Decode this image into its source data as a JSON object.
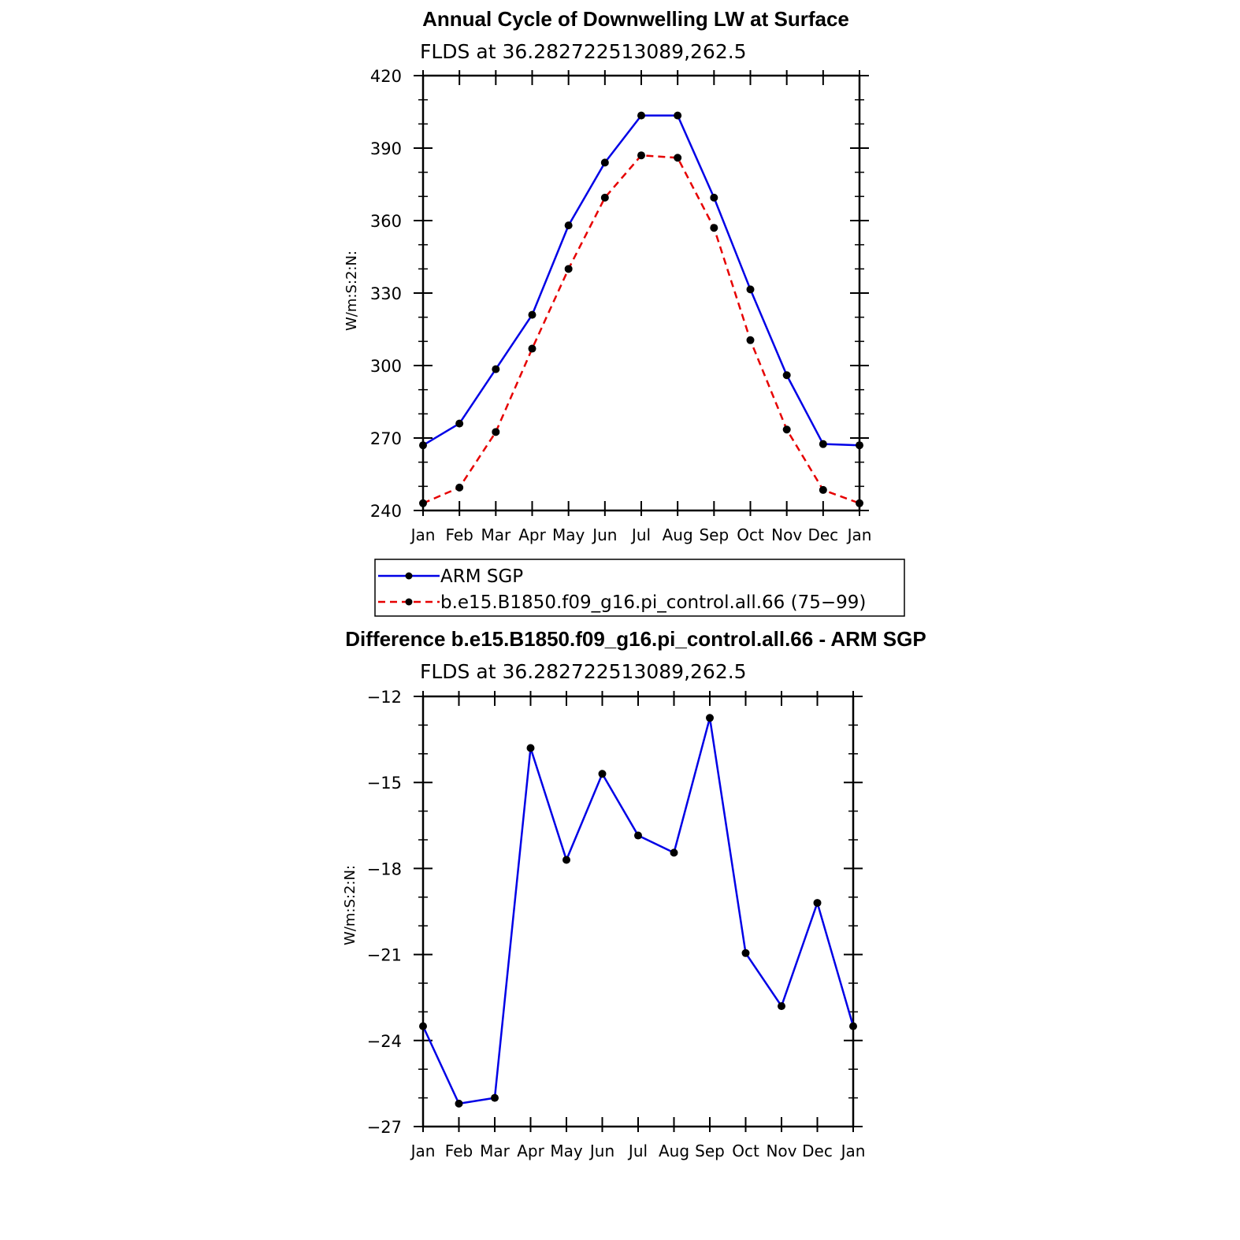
{
  "chart_data": [
    {
      "type": "line",
      "title": "Annual Cycle of Downwelling LW at Surface",
      "subtitle": "FLDS at 36.282722513089,262.5",
      "ylabel": "W/m:S:2:N:",
      "xlabel": "",
      "categories": [
        "Jan",
        "Feb",
        "Mar",
        "Apr",
        "May",
        "Jun",
        "Jul",
        "Aug",
        "Sep",
        "Oct",
        "Nov",
        "Dec",
        "Jan"
      ],
      "ylim": [
        240,
        420
      ],
      "yticks": [
        240,
        270,
        300,
        330,
        360,
        390,
        420
      ],
      "series": [
        {
          "name": "ARM SGP",
          "color": "#0000e6",
          "dash": "solid",
          "values": [
            267,
            276,
            298.5,
            321,
            358,
            384,
            403.5,
            403.5,
            369.5,
            331.5,
            296,
            267.5,
            267
          ]
        },
        {
          "name": "b.e15.B1850.f09_g16.pi_control.all.66 (75−99)",
          "color": "#e60000",
          "dash": "dashed",
          "values": [
            243,
            249.5,
            272.5,
            307,
            340,
            369.5,
            387,
            386,
            357,
            310.5,
            273.5,
            248.5,
            243
          ]
        }
      ],
      "legend": "below"
    },
    {
      "type": "line",
      "title": "Difference b.e15.B1850.f09_g16.pi_control.all.66 - ARM SGP",
      "subtitle": "FLDS at 36.282722513089,262.5",
      "ylabel": "W/m:S:2:N:",
      "xlabel": "",
      "categories": [
        "Jan",
        "Feb",
        "Mar",
        "Apr",
        "May",
        "Jun",
        "Jul",
        "Aug",
        "Sep",
        "Oct",
        "Nov",
        "Dec",
        "Jan"
      ],
      "ylim": [
        -27,
        -12
      ],
      "yticks": [
        -27,
        -24,
        -21,
        -18,
        -15,
        -12
      ],
      "series": [
        {
          "color": "#0000e6",
          "dash": "solid",
          "values": [
            -23.5,
            -26.2,
            -26.0,
            -13.8,
            -17.7,
            -14.7,
            -16.85,
            -17.45,
            -12.75,
            -20.95,
            -22.8,
            -19.2,
            -23.5
          ]
        }
      ]
    }
  ]
}
